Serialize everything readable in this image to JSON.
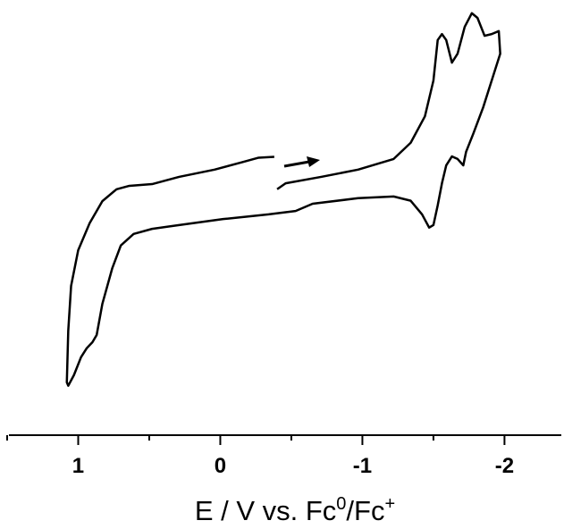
{
  "chart_data": {
    "type": "line",
    "xlabel_parts": [
      "E / V vs. Fc",
      "0",
      "/Fc",
      "+"
    ],
    "xlim": [
      1.5,
      -2.4
    ],
    "xticks": [
      1,
      0,
      -1,
      -2
    ],
    "xminor": [
      1.5,
      0.5,
      -0.5,
      -1.5
    ],
    "ylim": [
      0,
      100
    ],
    "series": [
      {
        "color": "#000000",
        "x": [
          -0.4,
          -0.46,
          -0.71,
          -0.97,
          -1.22,
          -1.34,
          -1.44,
          -1.5,
          -1.53,
          -1.56,
          -1.59,
          -1.63,
          -1.67,
          -1.72,
          -1.77,
          -1.81,
          -1.86,
          -1.91,
          -1.96,
          -1.97,
          -1.91,
          -1.85,
          -1.78,
          -1.73,
          -1.71,
          -1.67,
          -1.63,
          -1.59,
          -1.56,
          -1.53,
          -1.5,
          -1.47,
          -1.42,
          -1.34,
          -1.22,
          -0.97,
          -0.65,
          -0.53,
          -0.34,
          -0.02,
          0.29,
          0.48,
          0.61,
          0.7,
          0.76,
          0.83,
          0.87,
          0.9,
          0.94,
          0.98,
          1.03,
          1.07,
          1.08,
          1.07,
          1.05,
          1.0,
          0.92,
          0.83,
          0.73,
          0.64,
          0.48,
          0.29,
          0.04,
          -0.15,
          -0.27,
          -0.38
        ],
        "values": [
          57.7,
          59.1,
          60.6,
          62.3,
          64.8,
          68.6,
          74.8,
          83.2,
          92.7,
          94.1,
          92.7,
          87.4,
          89.5,
          95.8,
          99.0,
          97.9,
          93.7,
          94.1,
          94.8,
          89.5,
          83.2,
          76.9,
          70.7,
          66.5,
          63.3,
          64.8,
          65.4,
          63.3,
          59.1,
          53.9,
          49.3,
          48.7,
          51.8,
          55.0,
          56.0,
          55.6,
          54.3,
          52.6,
          51.8,
          50.7,
          49.3,
          48.4,
          47.2,
          44.5,
          39.2,
          30.8,
          23.5,
          21.8,
          20.4,
          18.3,
          14.1,
          11.6,
          12.4,
          24.5,
          35.0,
          43.4,
          49.7,
          54.9,
          57.7,
          58.5,
          58.9,
          60.6,
          62.3,
          64.0,
          65.1,
          65.3
        ]
      }
    ]
  }
}
